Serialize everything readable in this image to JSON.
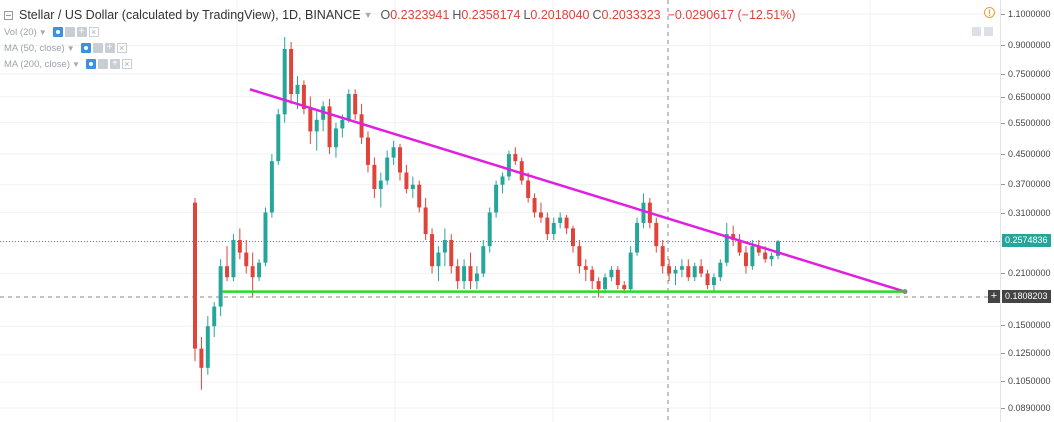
{
  "legend": {
    "title": "Stellar / US Dollar (calculated by TradingView), 1D, BINANCE",
    "ohlc": [
      {
        "key": "O",
        "value": "0.2323941"
      },
      {
        "key": "H",
        "value": "0.2358174"
      },
      {
        "key": "L",
        "value": "0.2018040"
      },
      {
        "key": "C",
        "value": "0.2033323"
      }
    ],
    "change": "−0.0290617 (−12.51%)",
    "indicators": [
      {
        "label": "Vol (20)"
      },
      {
        "label": "MA (50, close)"
      },
      {
        "label": "MA (200, close)"
      }
    ]
  },
  "price_axis": {
    "ticks": [
      "1.1000000",
      "0.9000000",
      "0.7500000",
      "0.6500000",
      "0.5500000",
      "0.4500000",
      "0.3700000",
      "0.3100000",
      "0.2574836",
      "0.2100000",
      "0.1808203",
      "0.1500000",
      "0.1250000",
      "0.1050000",
      "0.0890000"
    ],
    "last_price": "0.2574836",
    "crosshair_price": "0.1808203"
  },
  "colors": {
    "up": "#26a69a",
    "down": "#e0433a",
    "resistance_line": "#e020e0",
    "support_line": "#22dd22",
    "last_price": "#26a69a"
  },
  "chart_data": {
    "type": "candlestick",
    "scale": "log",
    "ylim": [
      0.085,
      1.15
    ],
    "resistance": [
      {
        "start": 0.68,
        "end": 0.187
      }
    ],
    "support": 0.187,
    "candles": [
      [
        0.33,
        0.34,
        0.12,
        0.13
      ],
      [
        0.13,
        0.14,
        0.1,
        0.115
      ],
      [
        0.115,
        0.16,
        0.11,
        0.15
      ],
      [
        0.15,
        0.175,
        0.14,
        0.17
      ],
      [
        0.17,
        0.23,
        0.16,
        0.22
      ],
      [
        0.22,
        0.25,
        0.2,
        0.205
      ],
      [
        0.205,
        0.27,
        0.2,
        0.26
      ],
      [
        0.26,
        0.28,
        0.23,
        0.24
      ],
      [
        0.24,
        0.26,
        0.21,
        0.22
      ],
      [
        0.22,
        0.24,
        0.18,
        0.205
      ],
      [
        0.205,
        0.23,
        0.2,
        0.225
      ],
      [
        0.225,
        0.32,
        0.22,
        0.31
      ],
      [
        0.31,
        0.45,
        0.3,
        0.43
      ],
      [
        0.43,
        0.6,
        0.42,
        0.58
      ],
      [
        0.58,
        0.95,
        0.55,
        0.88
      ],
      [
        0.88,
        0.92,
        0.62,
        0.66
      ],
      [
        0.66,
        0.74,
        0.6,
        0.7
      ],
      [
        0.7,
        0.72,
        0.58,
        0.6
      ],
      [
        0.6,
        0.65,
        0.48,
        0.52
      ],
      [
        0.52,
        0.6,
        0.46,
        0.56
      ],
      [
        0.56,
        0.63,
        0.52,
        0.61
      ],
      [
        0.61,
        0.64,
        0.45,
        0.47
      ],
      [
        0.47,
        0.55,
        0.44,
        0.53
      ],
      [
        0.53,
        0.58,
        0.5,
        0.56
      ],
      [
        0.56,
        0.68,
        0.55,
        0.66
      ],
      [
        0.66,
        0.68,
        0.56,
        0.58
      ],
      [
        0.58,
        0.62,
        0.48,
        0.5
      ],
      [
        0.5,
        0.52,
        0.4,
        0.42
      ],
      [
        0.42,
        0.44,
        0.34,
        0.36
      ],
      [
        0.36,
        0.4,
        0.32,
        0.38
      ],
      [
        0.38,
        0.46,
        0.37,
        0.44
      ],
      [
        0.44,
        0.49,
        0.42,
        0.47
      ],
      [
        0.47,
        0.48,
        0.38,
        0.4
      ],
      [
        0.4,
        0.42,
        0.35,
        0.36
      ],
      [
        0.36,
        0.39,
        0.34,
        0.37
      ],
      [
        0.37,
        0.38,
        0.31,
        0.32
      ],
      [
        0.32,
        0.34,
        0.26,
        0.27
      ],
      [
        0.27,
        0.28,
        0.21,
        0.22
      ],
      [
        0.22,
        0.25,
        0.2,
        0.24
      ],
      [
        0.24,
        0.28,
        0.22,
        0.26
      ],
      [
        0.26,
        0.27,
        0.21,
        0.22
      ],
      [
        0.22,
        0.23,
        0.19,
        0.2
      ],
      [
        0.2,
        0.23,
        0.19,
        0.22
      ],
      [
        0.22,
        0.24,
        0.19,
        0.2
      ],
      [
        0.2,
        0.22,
        0.19,
        0.21
      ],
      [
        0.21,
        0.26,
        0.205,
        0.25
      ],
      [
        0.25,
        0.32,
        0.24,
        0.31
      ],
      [
        0.31,
        0.38,
        0.3,
        0.37
      ],
      [
        0.37,
        0.4,
        0.35,
        0.39
      ],
      [
        0.39,
        0.46,
        0.38,
        0.45
      ],
      [
        0.45,
        0.47,
        0.42,
        0.43
      ],
      [
        0.43,
        0.44,
        0.37,
        0.38
      ],
      [
        0.38,
        0.4,
        0.33,
        0.34
      ],
      [
        0.34,
        0.35,
        0.3,
        0.31
      ],
      [
        0.31,
        0.33,
        0.29,
        0.3
      ],
      [
        0.3,
        0.31,
        0.26,
        0.27
      ],
      [
        0.27,
        0.3,
        0.26,
        0.29
      ],
      [
        0.29,
        0.31,
        0.28,
        0.3
      ],
      [
        0.3,
        0.305,
        0.27,
        0.28
      ],
      [
        0.28,
        0.285,
        0.24,
        0.25
      ],
      [
        0.25,
        0.26,
        0.21,
        0.22
      ],
      [
        0.22,
        0.23,
        0.2,
        0.215
      ],
      [
        0.215,
        0.22,
        0.19,
        0.2
      ],
      [
        0.2,
        0.205,
        0.18,
        0.19
      ],
      [
        0.19,
        0.21,
        0.185,
        0.205
      ],
      [
        0.205,
        0.22,
        0.2,
        0.215
      ],
      [
        0.215,
        0.22,
        0.19,
        0.195
      ],
      [
        0.195,
        0.2,
        0.185,
        0.19
      ],
      [
        0.19,
        0.25,
        0.188,
        0.24
      ],
      [
        0.24,
        0.3,
        0.235,
        0.29
      ],
      [
        0.29,
        0.35,
        0.28,
        0.33
      ],
      [
        0.33,
        0.34,
        0.28,
        0.29
      ],
      [
        0.29,
        0.3,
        0.24,
        0.25
      ],
      [
        0.25,
        0.26,
        0.21,
        0.22
      ],
      [
        0.22,
        0.23,
        0.2,
        0.21
      ],
      [
        0.21,
        0.22,
        0.195,
        0.215
      ],
      [
        0.215,
        0.23,
        0.205,
        0.22
      ],
      [
        0.22,
        0.23,
        0.2,
        0.205
      ],
      [
        0.205,
        0.225,
        0.2,
        0.22
      ],
      [
        0.22,
        0.23,
        0.205,
        0.21
      ],
      [
        0.21,
        0.215,
        0.19,
        0.195
      ],
      [
        0.195,
        0.21,
        0.188,
        0.205
      ],
      [
        0.205,
        0.23,
        0.2,
        0.225
      ],
      [
        0.225,
        0.29,
        0.22,
        0.27
      ],
      [
        0.27,
        0.285,
        0.25,
        0.26
      ],
      [
        0.26,
        0.27,
        0.235,
        0.24
      ],
      [
        0.24,
        0.25,
        0.21,
        0.22
      ],
      [
        0.22,
        0.26,
        0.215,
        0.25
      ],
      [
        0.25,
        0.26,
        0.235,
        0.24
      ],
      [
        0.24,
        0.25,
        0.225,
        0.23
      ],
      [
        0.23,
        0.24,
        0.22,
        0.235
      ],
      [
        0.235,
        0.26,
        0.23,
        0.258
      ]
    ]
  }
}
